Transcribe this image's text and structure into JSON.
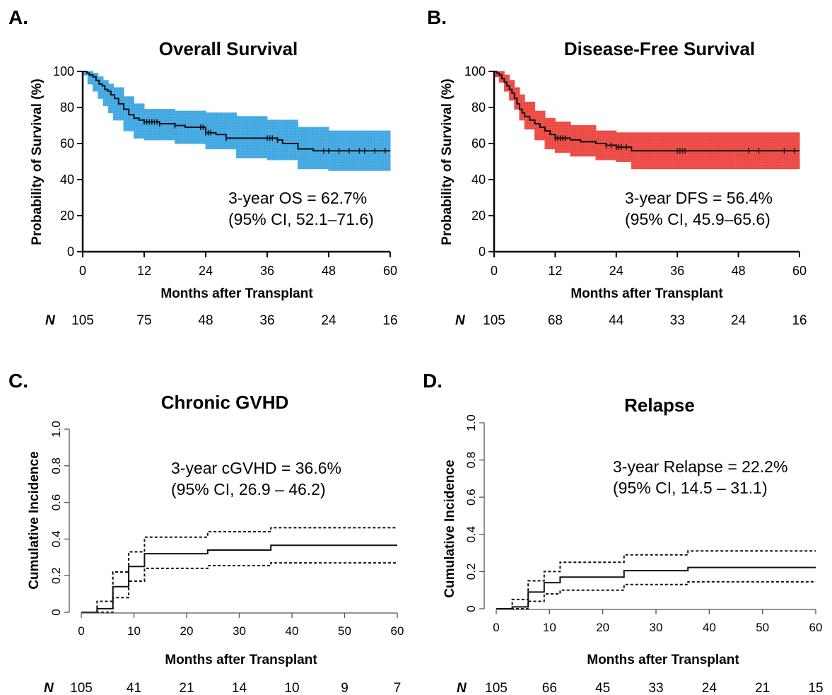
{
  "colors": {
    "os_band": "#4aaee6",
    "dfs_band": "#f0504a",
    "line": "#111111",
    "axis": "#000000",
    "cd_axis": "#555555"
  },
  "chart_data": [
    {
      "panel": "A.",
      "type": "line",
      "subtype": "kaplan-meier-with-ci-band",
      "title": "Overall Survival",
      "xlabel": "Months after Transplant",
      "ylabel": "Probability of Survival (%)",
      "xlim": [
        0,
        60
      ],
      "ylim": [
        0,
        100
      ],
      "xticks": [
        "0",
        "12",
        "24",
        "36",
        "48",
        "60"
      ],
      "yticks": [
        "0",
        "20",
        "40",
        "60",
        "80",
        "100"
      ],
      "annotation": [
        "3-year OS = 62.7%",
        "(95% CI, 52.1–71.6)"
      ],
      "at_risk_label": "N",
      "at_risk_x": [
        0,
        12,
        24,
        36,
        48,
        60
      ],
      "at_risk": [
        "105",
        "75",
        "48",
        "36",
        "24",
        "16"
      ],
      "band_color": "#4aaee6",
      "series": [
        {
          "name": "",
          "x": [
            0,
            0.8,
            1.3,
            2,
            2.6,
            3.2,
            3.8,
            4.3,
            4.9,
            5.5,
            6.2,
            7,
            8,
            9,
            10,
            11,
            12,
            15,
            18,
            20,
            24,
            26,
            28,
            33,
            38,
            39,
            42,
            45,
            60
          ],
          "y": [
            100,
            99,
            98,
            97,
            95,
            93,
            92,
            90,
            89,
            87,
            85,
            82,
            79,
            76,
            74,
            73,
            72,
            71,
            70,
            69,
            66,
            65,
            63,
            63,
            62,
            60,
            57,
            56,
            56
          ]
        },
        {
          "name": "",
          "role": "upper",
          "x": [
            0,
            1,
            2,
            3,
            4,
            5,
            6,
            8,
            10,
            12,
            18,
            24,
            30,
            36,
            42,
            48,
            60
          ],
          "y": [
            100,
            100,
            99,
            97,
            95,
            93,
            91,
            86,
            82,
            79,
            78,
            77,
            75,
            73,
            69,
            67,
            67
          ]
        },
        {
          "name": "",
          "role": "lower",
          "x": [
            0,
            1,
            2,
            3,
            4,
            5,
            6,
            8,
            10,
            12,
            18,
            24,
            30,
            36,
            42,
            48,
            60
          ],
          "y": [
            98,
            93,
            89,
            85,
            81,
            77,
            73,
            67,
            63,
            62,
            60,
            57,
            52,
            51,
            46,
            45,
            45
          ]
        }
      ],
      "censor_times": [
        12,
        12.5,
        13,
        13.5,
        14,
        14.5,
        15,
        18,
        23,
        23.5,
        24,
        24.5,
        25,
        28,
        36,
        36.5,
        37,
        38,
        47,
        48,
        50,
        52,
        54,
        55,
        57,
        59
      ]
    },
    {
      "panel": "B.",
      "type": "line",
      "subtype": "kaplan-meier-with-ci-band",
      "title": "Disease-Free Survival",
      "xlabel": "Months after Transplant",
      "ylabel": "Probability of Survival (%)",
      "xlim": [
        0,
        60
      ],
      "ylim": [
        0,
        100
      ],
      "xticks": [
        "0",
        "12",
        "24",
        "36",
        "48",
        "60"
      ],
      "yticks": [
        "0",
        "20",
        "40",
        "60",
        "80",
        "100"
      ],
      "annotation": [
        "3-year DFS = 56.4%",
        "(95% CI, 45.9–65.6)"
      ],
      "at_risk_label": "N",
      "at_risk_x": [
        0,
        12,
        24,
        36,
        48,
        60
      ],
      "at_risk": [
        "105",
        "68",
        "44",
        "33",
        "24",
        "16"
      ],
      "band_color": "#f0504a",
      "series": [
        {
          "name": "",
          "x": [
            0,
            0.5,
            1,
            1.5,
            2,
            2.5,
            3,
            3.5,
            4,
            4.5,
            5,
            5.5,
            6,
            7,
            8,
            9,
            10,
            11,
            12,
            14,
            15,
            17,
            20,
            22,
            24,
            27,
            60
          ],
          "y": [
            100,
            99,
            98,
            96,
            94,
            92,
            90,
            88,
            85,
            82,
            79,
            77,
            75,
            73,
            71,
            69,
            67,
            65,
            63,
            63,
            62,
            61,
            60,
            59,
            58,
            56,
            56
          ]
        },
        {
          "name": "",
          "role": "upper",
          "x": [
            0,
            1,
            2,
            3,
            4,
            5,
            6,
            8,
            10,
            12,
            15,
            20,
            24,
            30,
            36,
            60
          ],
          "y": [
            100,
            100,
            98,
            95,
            91,
            87,
            83,
            78,
            74,
            72,
            70,
            67,
            66,
            66,
            66,
            66
          ]
        },
        {
          "name": "",
          "role": "lower",
          "x": [
            0,
            1,
            2,
            3,
            4,
            5,
            6,
            8,
            10,
            12,
            15,
            20,
            24,
            27,
            30,
            36,
            60
          ],
          "y": [
            97,
            94,
            89,
            84,
            79,
            73,
            68,
            62,
            57,
            55,
            53,
            51,
            50,
            46,
            46,
            46,
            46
          ]
        }
      ],
      "censor_times": [
        12,
        12.5,
        13,
        13.5,
        14,
        22,
        23,
        24,
        24.5,
        25,
        26,
        36,
        36.5,
        37,
        37.5,
        50,
        52,
        57,
        59
      ]
    },
    {
      "panel": "C.",
      "type": "line",
      "subtype": "cumulative-incidence-with-ci",
      "title": "Chronic GVHD",
      "xlabel": "Months after Transplant",
      "ylabel": "Cumulative Incidence",
      "xlim": [
        0,
        60
      ],
      "ylim": [
        0,
        1.0
      ],
      "xticks": [
        "0",
        "10",
        "20",
        "30",
        "40",
        "50",
        "60"
      ],
      "yticks": [
        "0",
        "0.2",
        "0.4",
        "0.6",
        "0.8",
        "1.0"
      ],
      "annotation": [
        "3-year cGVHD = 36.6%",
        "(95% CI, 26.9 – 46.2)"
      ],
      "at_risk_label": "N",
      "at_risk_x": [
        0,
        10,
        20,
        30,
        40,
        50,
        60
      ],
      "at_risk": [
        "105",
        "41",
        "21",
        "14",
        "10",
        "9",
        "7"
      ],
      "series": [
        {
          "name": "",
          "x": [
            3,
            6,
            9,
            12,
            24,
            36,
            60
          ],
          "y": [
            0.02,
            0.14,
            0.25,
            0.32,
            0.34,
            0.366,
            0.366
          ]
        },
        {
          "name": "",
          "role": "upper",
          "x": [
            3,
            6,
            9,
            12,
            24,
            36,
            60
          ],
          "y": [
            0.06,
            0.22,
            0.33,
            0.41,
            0.44,
            0.462,
            0.462
          ]
        },
        {
          "name": "",
          "role": "lower",
          "x": [
            3,
            6,
            9,
            12,
            24,
            36,
            60
          ],
          "y": [
            0.0,
            0.08,
            0.17,
            0.24,
            0.255,
            0.27,
            0.27
          ]
        }
      ]
    },
    {
      "panel": "D.",
      "type": "line",
      "subtype": "cumulative-incidence-with-ci",
      "title": "Relapse",
      "xlabel": "Months after Transplant",
      "ylabel": "Cumulative Incidence",
      "xlim": [
        0,
        60
      ],
      "ylim": [
        0,
        1.0
      ],
      "xticks": [
        "0",
        "10",
        "20",
        "30",
        "40",
        "50",
        "60"
      ],
      "yticks": [
        "0",
        "0.2",
        "0.4",
        "0.6",
        "0.8",
        "1.0"
      ],
      "annotation": [
        "3-year Relapse = 22.2%",
        "(95% CI, 14.5 – 31.1)"
      ],
      "at_risk_label": "N",
      "at_risk_x": [
        0,
        10,
        20,
        30,
        40,
        50,
        60
      ],
      "at_risk": [
        "105",
        "66",
        "45",
        "33",
        "24",
        "21",
        "15"
      ],
      "series": [
        {
          "name": "",
          "x": [
            3,
            6,
            9,
            12,
            24,
            36,
            60
          ],
          "y": [
            0.01,
            0.09,
            0.14,
            0.17,
            0.205,
            0.222,
            0.222
          ]
        },
        {
          "name": "",
          "role": "upper",
          "x": [
            3,
            6,
            9,
            12,
            24,
            36,
            60
          ],
          "y": [
            0.05,
            0.15,
            0.2,
            0.25,
            0.29,
            0.311,
            0.311
          ]
        },
        {
          "name": "",
          "role": "lower",
          "x": [
            3,
            6,
            9,
            12,
            24,
            36,
            60
          ],
          "y": [
            0.0,
            0.04,
            0.08,
            0.1,
            0.13,
            0.145,
            0.145
          ]
        }
      ]
    }
  ]
}
